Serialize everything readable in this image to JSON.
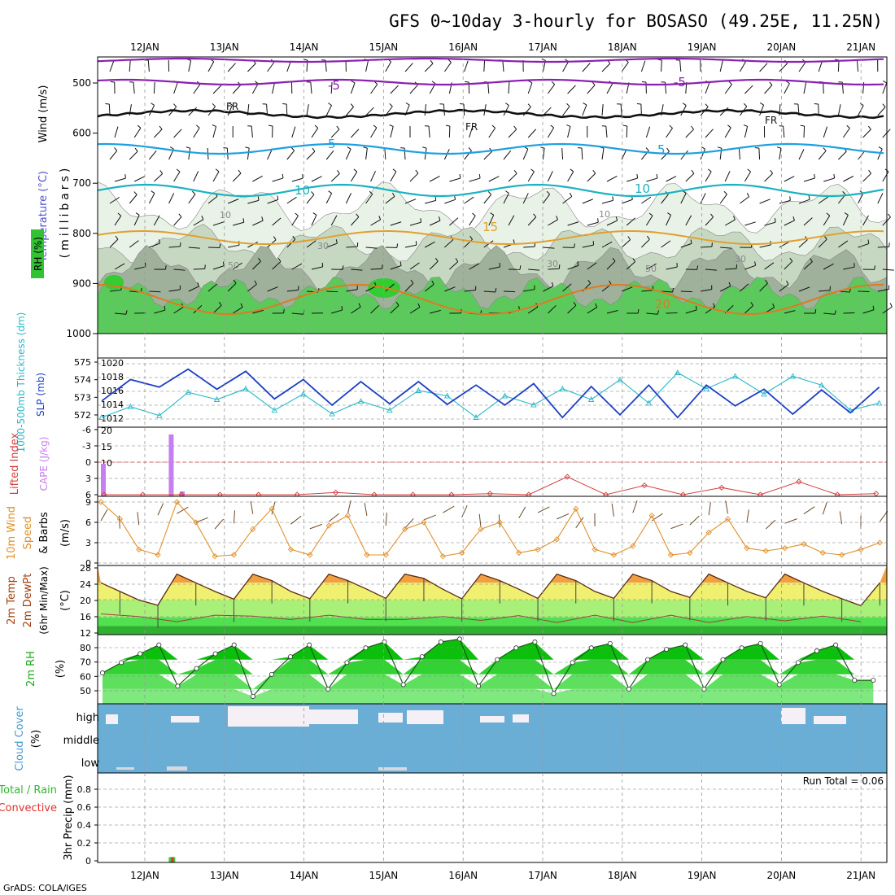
{
  "title": "GFS 0~10day 3-hourly for BOSASO (49.25E, 11.25N)",
  "footer": "GrADS: COLA/IGES",
  "colors": {
    "rh_light": "#e8f2e6",
    "rh_mid": "#c7d8c2",
    "rh_dark": "#9fb09b",
    "rh_green": "#5cc95c",
    "slp": "#1d3fc4",
    "thickness": "#2ab8c8",
    "cape": "#c77ef0",
    "lifted": "#d64040",
    "wind10": "#e0902a",
    "cloud": "#6aaed6",
    "cloud_high": "#f4f0f6",
    "temp_band_hot": "#f0a040",
    "temp_band_warm": "#f0f070",
    "temp_band_lime": "#a8f078",
    "temp_band_green": "#50e050",
    "temp_band_dark": "#30b030",
    "rh_fill1": "#0cbf0c",
    "rh_fill2": "#32d232",
    "rh_fill3": "#5ee05e",
    "rh_fill4": "#7fe87f",
    "precip_total": "#3cc83c",
    "precip_conv": "#e03030",
    "iso_purple": "#8a1fb0",
    "iso_black": "#111111",
    "iso_blue": "#1ea0e0",
    "iso_cyan": "#1ab2c2",
    "iso_orange": "#e0a030",
    "iso_dkorange": "#e07a20"
  },
  "dates": [
    "12JAN",
    "13JAN",
    "14JAN",
    "15JAN",
    "16JAN",
    "17JAN",
    "18JAN",
    "19JAN",
    "20JAN",
    "21JAN"
  ],
  "panels": {
    "upper": {
      "ylabel_wind": "Wind (m/s)",
      "ylabel_temp": "Temperature (°C)",
      "ylabel_rh": "RH (%)",
      "ylabel_unit": "(millibars)",
      "pressure_ticks": [
        "500",
        "600",
        "700",
        "800",
        "900",
        "1000"
      ],
      "contour_labels": {
        "m5": "-5",
        "fr": "FR",
        "p5": "5",
        "p10": "10",
        "p15": "15",
        "p20": "20",
        "rh10": "10",
        "rh30": "30",
        "rh50": "50"
      }
    },
    "slp": {
      "ylabel_left": "1000-500mb Thickness (dm)",
      "ylabel_right": "SLP (mb)",
      "thickness_ticks": [
        "575",
        "574",
        "573",
        "572"
      ],
      "slp_ticks": [
        "1020",
        "1018",
        "1016",
        "1014",
        "1012"
      ]
    },
    "cape": {
      "ylabel_left": "Lifted Index",
      "ylabel_right": "CAPE (J/kg)",
      "li_ticks": [
        "-6",
        "-3",
        "0",
        "3",
        "6"
      ],
      "cape_ticks": [
        "20",
        "15",
        "10",
        "5"
      ]
    },
    "wind10": {
      "ylabel": [
        "10m Wind",
        "Speed",
        "& Barbs"
      ],
      "unit": "(m/s)",
      "ticks": [
        "9",
        "6",
        "3",
        "0"
      ]
    },
    "temp2m": {
      "ylabel": [
        "2m Temp",
        "2m DewPt",
        "(6hr Min/Max)"
      ],
      "unit": "(°C)",
      "ticks": [
        "28",
        "24",
        "20",
        "16",
        "12"
      ]
    },
    "rh2m": {
      "ylabel": "2m RH",
      "unit": "(%)",
      "ticks": [
        "80",
        "70",
        "60",
        "50"
      ]
    },
    "cloud": {
      "ylabel": [
        "Cloud Cover",
        "(%)"
      ],
      "levels": [
        "high",
        "middle",
        "low"
      ]
    },
    "precip": {
      "ylabel": "3hr Precip (mm)",
      "legend_total": "Total / Rain",
      "legend_conv": "Convective",
      "run_total": "Run Total = 0.06",
      "ticks": [
        "0.8",
        "0.6",
        "0.4",
        "0.2",
        "0"
      ]
    }
  },
  "chart_data": [
    {
      "type": "line",
      "title": "1000-500mb Thickness (dm)",
      "t_days": [
        0,
        0.375,
        0.75,
        1.125,
        1.5,
        1.875,
        2.25,
        2.625,
        3,
        3.375,
        3.75,
        4.125,
        4.5,
        4.875,
        5.25,
        5.625,
        6,
        6.375,
        6.75,
        7.125,
        7.5,
        7.875,
        8.25,
        8.625,
        9,
        9.375,
        9.75,
        10.125
      ],
      "values": [
        572.0,
        572.6,
        572.1,
        573.4,
        573.0,
        573.6,
        572.4,
        573.3,
        572.2,
        572.9,
        572.4,
        573.5,
        573.2,
        572.0,
        573.2,
        572.7,
        573.6,
        573.0,
        574.1,
        572.8,
        574.5,
        573.6,
        574.3,
        573.3,
        574.3,
        573.8,
        572.4,
        572.8
      ]
    },
    {
      "type": "line",
      "title": "SLP (mb)",
      "t_days": [
        0,
        0.375,
        0.75,
        1.125,
        1.5,
        1.875,
        2.25,
        2.625,
        3,
        3.375,
        3.75,
        4.125,
        4.5,
        4.875,
        5.25,
        5.625,
        6,
        6.375,
        6.75,
        7.125,
        7.5,
        7.875,
        8.25,
        8.625,
        9,
        9.375,
        9.75,
        10.125
      ],
      "values": [
        1015.2,
        1018.3,
        1017.2,
        1019.8,
        1016.9,
        1019.5,
        1015.5,
        1018.3,
        1014.6,
        1018.0,
        1014.8,
        1018.0,
        1014.7,
        1017.5,
        1014.6,
        1017.7,
        1012.8,
        1017.3,
        1013.2,
        1017.5,
        1012.8,
        1017.5,
        1014.5,
        1016.9,
        1013.3,
        1016.8,
        1013.5,
        1017.2
      ]
    },
    {
      "type": "bar",
      "title": "CAPE (J/kg)",
      "t_days": [
        0,
        0.875
      ],
      "values": [
        10,
        19
      ]
    },
    {
      "type": "line",
      "title": "Lifted Index",
      "t_days": [
        0,
        0.5,
        1,
        1.5,
        2,
        2.5,
        3,
        3.5,
        4,
        4.5,
        5,
        5.5,
        6,
        6.5,
        7,
        7.5,
        8,
        8.5,
        9,
        9.5,
        10
      ],
      "values": [
        6,
        6,
        6,
        6,
        6,
        6,
        5.6,
        6,
        6,
        6,
        5.8,
        6,
        2.7,
        6,
        4.3,
        6,
        4.7,
        6,
        3.6,
        6,
        5.8
      ]
    },
    {
      "type": "line",
      "title": "10m Wind Speed (m/s)",
      "t_days": [
        0,
        0.25,
        0.5,
        0.75,
        1,
        1.25,
        1.5,
        1.75,
        2,
        2.25,
        2.5,
        2.75,
        3,
        3.25,
        3.5,
        3.75,
        4,
        4.25,
        4.5,
        4.75,
        5,
        5.25,
        5.5,
        5.75,
        6,
        6.25,
        6.5,
        6.75,
        7,
        7.25,
        7.5,
        7.75,
        8,
        8.25,
        8.5,
        8.75,
        9,
        9.25,
        9.5,
        9.75,
        10,
        10.25
      ],
      "values": [
        9,
        6.5,
        2,
        1.2,
        9,
        6,
        1,
        1.2,
        5,
        8,
        2,
        1.2,
        5.5,
        7,
        1.2,
        1.2,
        5,
        6,
        1,
        1.5,
        5,
        6,
        1.5,
        2,
        3.5,
        8,
        2,
        1.2,
        2.5,
        7,
        1.2,
        1.5,
        4.5,
        6.5,
        2.2,
        1.8,
        2.2,
        2.8,
        1.5,
        1.2,
        2,
        3
      ]
    },
    {
      "type": "area",
      "title": "2m Temp (°C)",
      "t_days": [
        0,
        0.25,
        0.5,
        0.75,
        1,
        1.25,
        1.5,
        1.75,
        2,
        2.25,
        2.5,
        2.75,
        3,
        3.25,
        3.5,
        3.75,
        4,
        4.25,
        4.5,
        4.75,
        5,
        5.25,
        5.5,
        5.75,
        6,
        6.25,
        6.5,
        6.75,
        7,
        7.25,
        7.5,
        7.75,
        8,
        8.25,
        8.5,
        8.75,
        9,
        9.25,
        9.5,
        9.75,
        10,
        10.25
      ],
      "values": [
        24,
        22,
        20,
        18.8,
        26,
        24,
        22,
        20.2,
        26,
        24.5,
        22,
        20.3,
        26,
        24.5,
        22.5,
        20.4,
        26,
        25,
        22.5,
        20.3,
        26,
        24.5,
        22.5,
        20.4,
        26,
        24.5,
        22,
        20.4,
        26,
        24.5,
        22,
        20.6,
        26,
        24,
        22,
        20.5,
        26,
        24,
        22,
        20.3,
        18.7,
        24
      ]
    },
    {
      "type": "line",
      "title": "2m DewPt (°C)",
      "t_days": [
        0,
        0.5,
        1,
        1.5,
        2,
        2.5,
        3,
        3.5,
        4,
        4.5,
        5,
        5.5,
        6,
        6.5,
        7,
        7.5,
        8,
        8.5,
        9,
        9.5,
        10
      ],
      "values": [
        16.8,
        16.2,
        15,
        16.5,
        16.3,
        15.5,
        16.5,
        15.5,
        15.5,
        16.2,
        15.3,
        16.4,
        14.8,
        16.5,
        14.8,
        16.5,
        14.8,
        16.2,
        15.2,
        16.3,
        15
      ]
    },
    {
      "type": "area",
      "title": "2m RH (%)",
      "t_days": [
        0,
        0.25,
        0.5,
        0.75,
        1,
        1.25,
        1.5,
        1.75,
        2,
        2.25,
        2.5,
        2.75,
        3,
        3.25,
        3.5,
        3.75,
        4,
        4.25,
        4.5,
        4.75,
        5,
        5.25,
        5.5,
        5.75,
        6,
        6.25,
        6.5,
        6.75,
        7,
        7.25,
        7.5,
        7.75,
        8,
        8.25,
        8.5,
        8.75,
        9,
        9.25,
        9.5,
        9.75,
        10,
        10.25
      ],
      "values": [
        61,
        68,
        74,
        80,
        52,
        64,
        74,
        80,
        45,
        60,
        72,
        80,
        50,
        68,
        78,
        82,
        53,
        72,
        82,
        84,
        52,
        70,
        78,
        82,
        47,
        68,
        78,
        81,
        50,
        70,
        77,
        80,
        50,
        70,
        78,
        81,
        53,
        68,
        76,
        80,
        56,
        56
      ]
    },
    {
      "type": "bar",
      "title": "3hr Precip (mm)",
      "t_days": [
        0.875
      ],
      "values": [
        0.06
      ]
    }
  ]
}
